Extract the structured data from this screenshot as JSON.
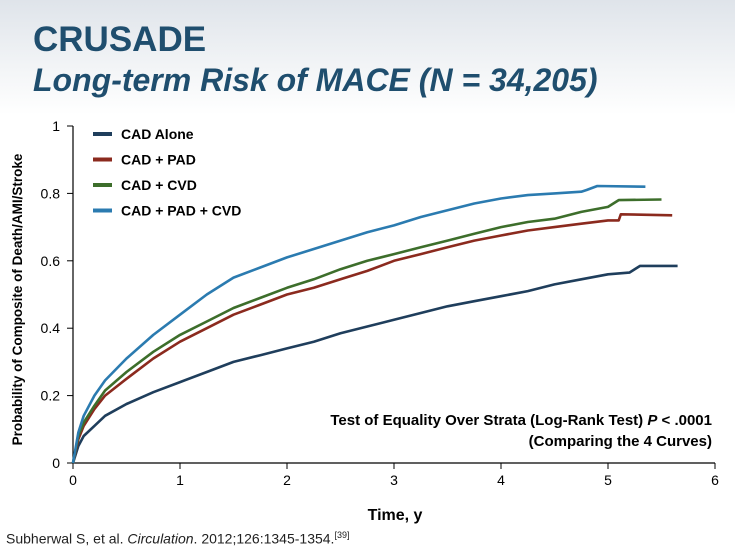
{
  "slide": {
    "title": "CRUSADE",
    "subtitle": "Long-term Risk of MACE (N = 34,205)",
    "citation": {
      "authors": "Subherwal S, et al. ",
      "journal": "Circulation",
      "rest": ". 2012;126:1345-1354.",
      "ref": "[39]"
    }
  },
  "chart_data": {
    "type": "line",
    "title": "",
    "xlabel": "Time, y",
    "ylabel": "Probability of Composite of Death/AMI/Stroke",
    "xlim": [
      0,
      6
    ],
    "ylim": [
      0,
      1
    ],
    "x_ticks": [
      "0",
      "1",
      "2",
      "3",
      "4",
      "5",
      "6"
    ],
    "y_ticks": [
      "0",
      "0.2",
      "0.4",
      "0.6",
      "0.8",
      "1"
    ],
    "grid": false,
    "legend_position": "top-left",
    "annotation": {
      "line1": "Test of Equality Over Strata (Log-Rank Test) ",
      "p_symbol": "P",
      "line1_end": " < .0001",
      "line2": "(Comparing the 4 Curves)"
    },
    "series": [
      {
        "name": "CAD Alone",
        "color": "#1f3e5c",
        "points": [
          [
            0,
            0
          ],
          [
            0.05,
            0.05
          ],
          [
            0.1,
            0.08
          ],
          [
            0.2,
            0.11
          ],
          [
            0.3,
            0.14
          ],
          [
            0.5,
            0.175
          ],
          [
            0.75,
            0.21
          ],
          [
            1,
            0.24
          ],
          [
            1.25,
            0.27
          ],
          [
            1.5,
            0.3
          ],
          [
            1.75,
            0.32
          ],
          [
            2,
            0.34
          ],
          [
            2.25,
            0.36
          ],
          [
            2.5,
            0.385
          ],
          [
            2.75,
            0.405
          ],
          [
            3,
            0.425
          ],
          [
            3.25,
            0.445
          ],
          [
            3.5,
            0.465
          ],
          [
            3.75,
            0.48
          ],
          [
            4,
            0.495
          ],
          [
            4.25,
            0.51
          ],
          [
            4.5,
            0.53
          ],
          [
            4.75,
            0.545
          ],
          [
            5,
            0.56
          ],
          [
            5.2,
            0.565
          ],
          [
            5.3,
            0.585
          ],
          [
            5.65,
            0.585
          ]
        ]
      },
      {
        "name": "CAD + PAD",
        "color": "#8b2a1e",
        "points": [
          [
            0,
            0
          ],
          [
            0.05,
            0.07
          ],
          [
            0.1,
            0.11
          ],
          [
            0.2,
            0.16
          ],
          [
            0.3,
            0.2
          ],
          [
            0.5,
            0.25
          ],
          [
            0.75,
            0.31
          ],
          [
            1,
            0.36
          ],
          [
            1.25,
            0.4
          ],
          [
            1.5,
            0.44
          ],
          [
            1.75,
            0.47
          ],
          [
            2,
            0.5
          ],
          [
            2.25,
            0.52
          ],
          [
            2.5,
            0.545
          ],
          [
            2.75,
            0.57
          ],
          [
            3,
            0.6
          ],
          [
            3.25,
            0.62
          ],
          [
            3.5,
            0.64
          ],
          [
            3.75,
            0.66
          ],
          [
            4,
            0.675
          ],
          [
            4.25,
            0.69
          ],
          [
            4.5,
            0.7
          ],
          [
            4.75,
            0.71
          ],
          [
            5,
            0.72
          ],
          [
            5.1,
            0.72
          ],
          [
            5.12,
            0.738
          ],
          [
            5.6,
            0.735
          ]
        ]
      },
      {
        "name": "CAD + CVD",
        "color": "#3d6e2b",
        "points": [
          [
            0,
            0
          ],
          [
            0.05,
            0.08
          ],
          [
            0.1,
            0.12
          ],
          [
            0.2,
            0.17
          ],
          [
            0.3,
            0.215
          ],
          [
            0.5,
            0.27
          ],
          [
            0.75,
            0.33
          ],
          [
            1,
            0.38
          ],
          [
            1.25,
            0.42
          ],
          [
            1.5,
            0.46
          ],
          [
            1.75,
            0.49
          ],
          [
            2,
            0.52
          ],
          [
            2.25,
            0.545
          ],
          [
            2.5,
            0.575
          ],
          [
            2.75,
            0.6
          ],
          [
            3,
            0.62
          ],
          [
            3.25,
            0.64
          ],
          [
            3.5,
            0.66
          ],
          [
            3.75,
            0.68
          ],
          [
            4,
            0.7
          ],
          [
            4.25,
            0.715
          ],
          [
            4.5,
            0.725
          ],
          [
            4.75,
            0.745
          ],
          [
            5,
            0.76
          ],
          [
            5.1,
            0.78
          ],
          [
            5.5,
            0.782
          ]
        ]
      },
      {
        "name": "CAD + PAD + CVD",
        "color": "#2b7bb0",
        "points": [
          [
            0,
            0
          ],
          [
            0.05,
            0.09
          ],
          [
            0.1,
            0.14
          ],
          [
            0.2,
            0.2
          ],
          [
            0.3,
            0.245
          ],
          [
            0.5,
            0.31
          ],
          [
            0.75,
            0.38
          ],
          [
            1,
            0.44
          ],
          [
            1.25,
            0.5
          ],
          [
            1.5,
            0.55
          ],
          [
            1.75,
            0.58
          ],
          [
            2,
            0.61
          ],
          [
            2.25,
            0.635
          ],
          [
            2.5,
            0.66
          ],
          [
            2.75,
            0.685
          ],
          [
            3,
            0.705
          ],
          [
            3.25,
            0.73
          ],
          [
            3.5,
            0.75
          ],
          [
            3.75,
            0.77
          ],
          [
            4,
            0.785
          ],
          [
            4.25,
            0.795
          ],
          [
            4.5,
            0.8
          ],
          [
            4.75,
            0.805
          ],
          [
            4.8,
            0.81
          ],
          [
            4.9,
            0.822
          ],
          [
            5.35,
            0.82
          ]
        ]
      }
    ]
  }
}
